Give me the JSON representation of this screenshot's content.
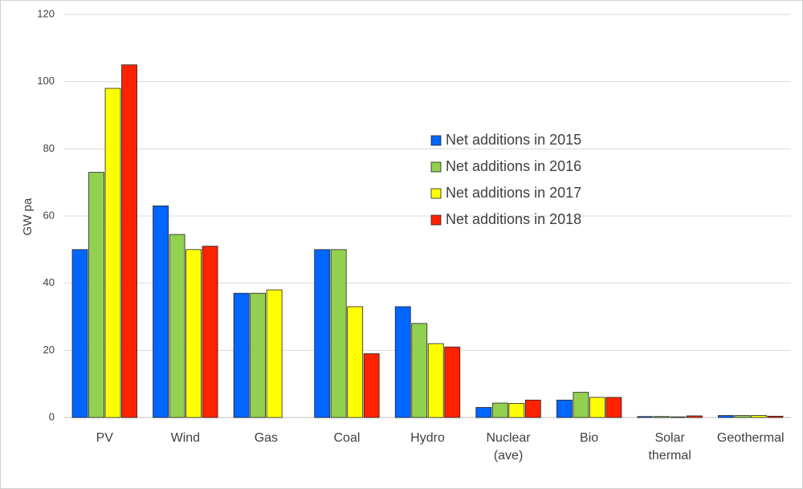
{
  "chart_data": {
    "type": "bar",
    "y_label": "GW pa",
    "categories": [
      [
        "PV"
      ],
      [
        "Wind"
      ],
      [
        "Gas"
      ],
      [
        "Coal"
      ],
      [
        "Hydro"
      ],
      [
        "Nuclear",
        "(ave)"
      ],
      [
        "Bio"
      ],
      [
        "Solar",
        "thermal"
      ],
      [
        "Geothermal"
      ]
    ],
    "series": [
      {
        "name": "Net additions in 2015",
        "color": "#0066ff",
        "values": [
          50,
          63,
          37,
          50,
          33,
          3,
          5.2,
          0.3,
          0.6
        ]
      },
      {
        "name": "Net additions in 2016",
        "color": "#92d050",
        "values": [
          73,
          54.5,
          37,
          50,
          28,
          4.3,
          7.5,
          0.3,
          0.6
        ]
      },
      {
        "name": "Net additions in 2017",
        "color": "#ffff00",
        "values": [
          98,
          50,
          38,
          33,
          22,
          4.2,
          6,
          0.2,
          0.6
        ]
      },
      {
        "name": "Net additions in 2018",
        "color": "#ff2200",
        "values": [
          105,
          51,
          null,
          19,
          21,
          5.2,
          6,
          0.5,
          0.4
        ]
      }
    ],
    "ylim": [
      0,
      120
    ],
    "yticks": [
      0,
      20,
      40,
      60,
      80,
      100,
      120
    ],
    "grid": true,
    "legend": "center right"
  }
}
